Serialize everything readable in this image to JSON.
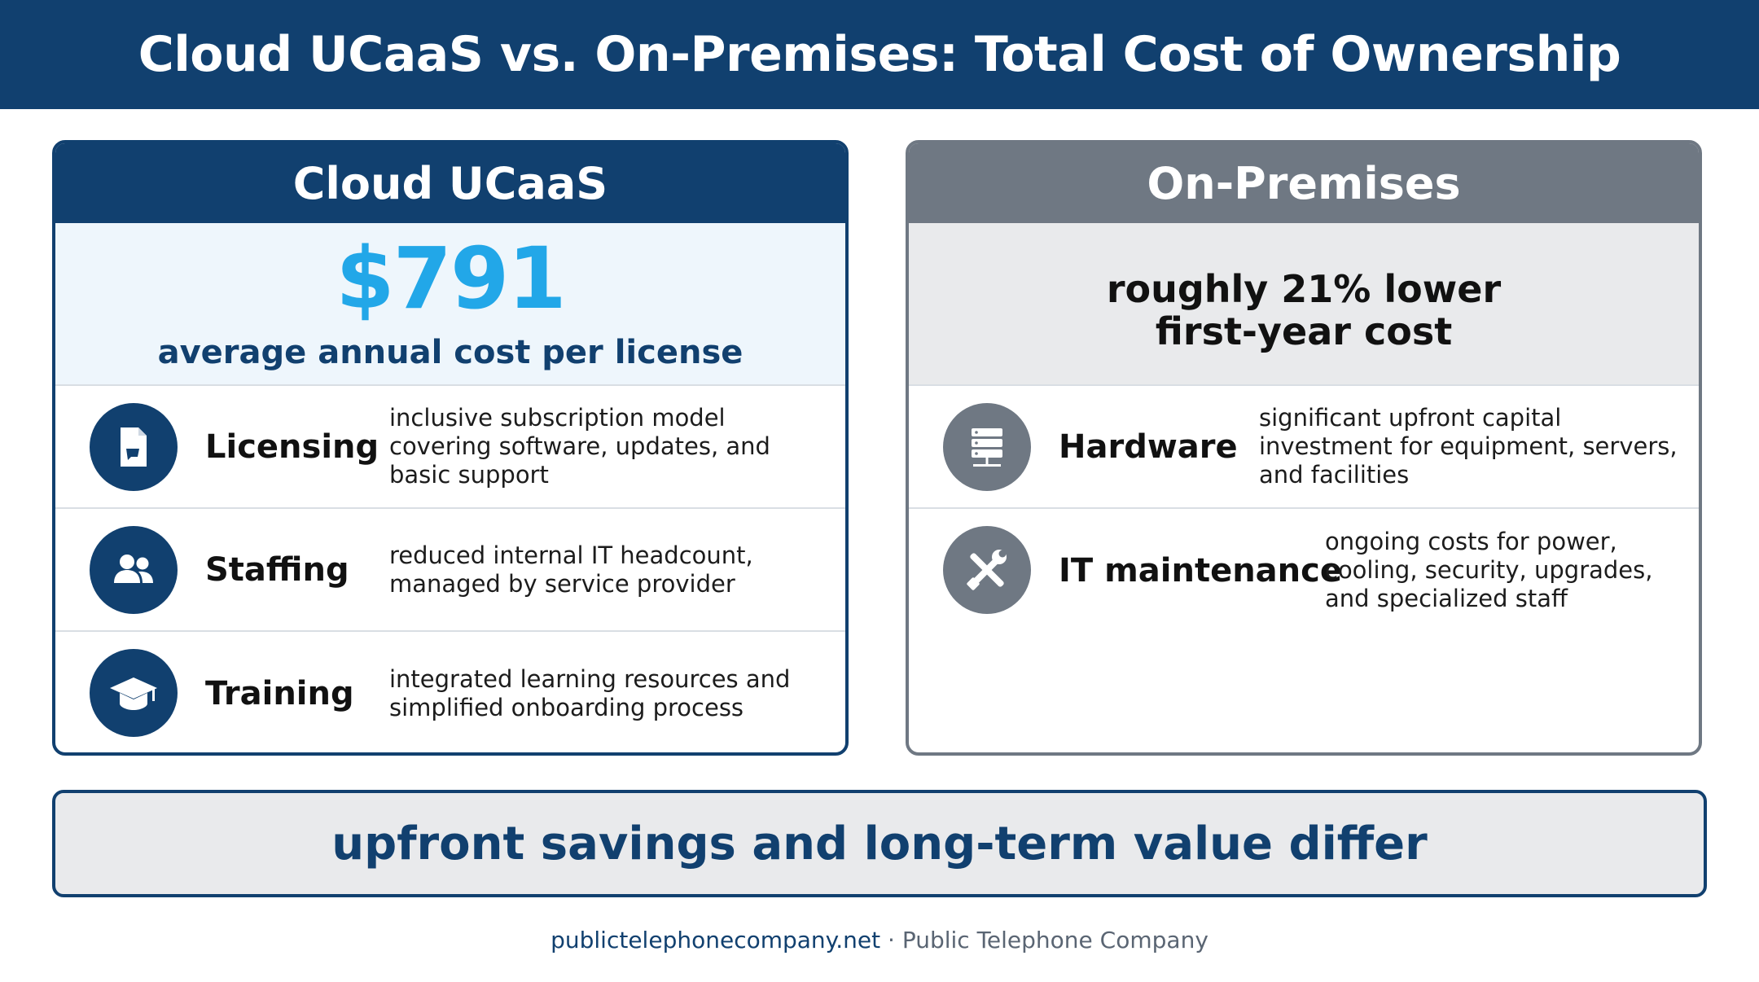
{
  "title": "Cloud UCaaS vs. On-Premises: Total Cost of Ownership",
  "cloud": {
    "header": "Cloud UCaaS",
    "hero_value": "$791",
    "hero_caption": "average annual cost per license",
    "rows": [
      {
        "icon": "document-icon",
        "label": "Licensing",
        "desc_lines": [
          "inclusive subscription model",
          "covering software, updates, and",
          "basic support"
        ]
      },
      {
        "icon": "people-icon",
        "label": "Staffing",
        "desc_lines": [
          "reduced internal IT headcount,",
          "managed by service provider"
        ]
      },
      {
        "icon": "graduation-cap-icon",
        "label": "Training",
        "desc_lines": [
          "integrated learning resources and",
          "simplified onboarding process"
        ]
      }
    ]
  },
  "onprem": {
    "header": "On-Premises",
    "hero_line1": "roughly 21% lower",
    "hero_line2": "first-year cost",
    "rows": [
      {
        "icon": "server-icon",
        "label": "Hardware",
        "desc_lines": [
          "significant upfront capital",
          "investment for equipment, servers,",
          "and facilities"
        ]
      },
      {
        "icon": "tools-icon",
        "label": "IT maintenance",
        "desc_lines": [
          "ongoing costs for power,",
          "cooling, security, upgrades,",
          "and specialized staff"
        ]
      }
    ]
  },
  "conclusion": "upfront savings and long-term value differ",
  "credit": {
    "site": "publictelephonecompany.net",
    "separator": " · ",
    "company": "Public Telephone Company"
  },
  "colors": {
    "navy": "#11406f",
    "gray": "#6f7883",
    "accent_blue": "#22a7e8"
  }
}
